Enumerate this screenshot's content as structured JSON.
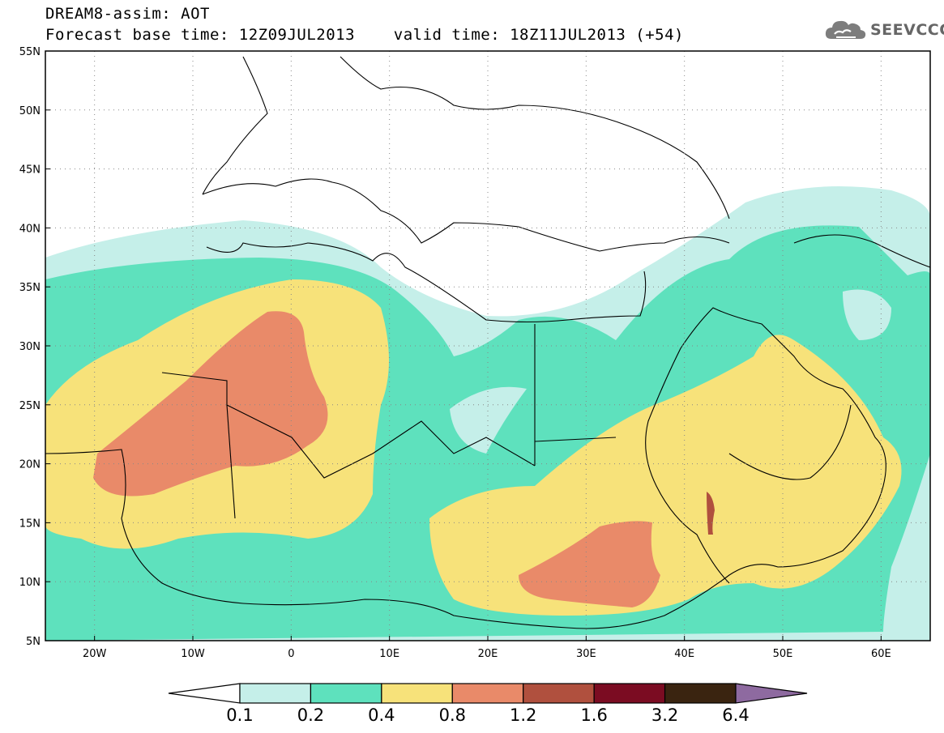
{
  "header": {
    "title": "DREAM8-assim: AOT",
    "subtitle": "Forecast base time: 12Z09JUL2013    valid time: 18Z11JUL2013 (+54)",
    "logo_text": "SEEVCCC",
    "logo_icon": "cloud-icon"
  },
  "map": {
    "lat_labels": [
      "55N",
      "50N",
      "45N",
      "40N",
      "35N",
      "30N",
      "25N",
      "20N",
      "15N",
      "10N",
      "5N"
    ],
    "lon_labels": [
      "20W",
      "10W",
      "0",
      "10E",
      "20E",
      "30E",
      "40E",
      "50E",
      "60E"
    ],
    "lon_range": [
      -25,
      65
    ],
    "lat_range": [
      5,
      55
    ],
    "grid": "dotted"
  },
  "legend": {
    "labels": [
      "0.1",
      "0.2",
      "0.4",
      "0.8",
      "1.2",
      "1.6",
      "3.2",
      "6.4"
    ],
    "colors": [
      "#ffffff",
      "#c5efe9",
      "#5ee1bd",
      "#f7e27a",
      "#e98a69",
      "#b0503e",
      "#7b0c22",
      "#3a2410",
      "#8e6aa0"
    ]
  }
}
